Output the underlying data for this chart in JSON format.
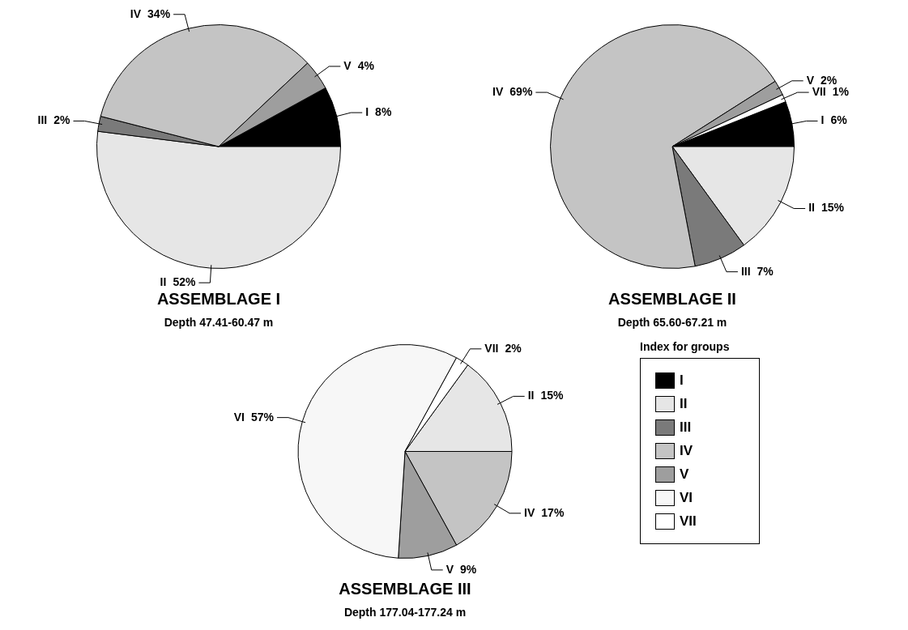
{
  "chart_data": [
    {
      "type": "pie",
      "title": "ASSEMBLAGE I",
      "subtitle": "Depth 47.41-60.47 m",
      "categories": [
        "I",
        "II",
        "III",
        "IV",
        "V"
      ],
      "values": [
        8,
        52,
        2,
        34,
        4
      ],
      "value_labels": [
        "8%",
        "52%",
        "2%",
        "34%",
        "4%"
      ],
      "colors": [
        "#000000",
        "#e6e6e6",
        "#7a7a7a",
        "#c4c4c4",
        "#9e9e9e"
      ]
    },
    {
      "type": "pie",
      "title": "ASSEMBLAGE II",
      "subtitle": "Depth 65.60-67.21 m",
      "categories": [
        "I",
        "II",
        "III",
        "IV",
        "V",
        "VII"
      ],
      "values": [
        6,
        15,
        7,
        69,
        2,
        1
      ],
      "value_labels": [
        "6%",
        "15%",
        "7%",
        "69%",
        "2%",
        "1%"
      ],
      "colors": [
        "#000000",
        "#e6e6e6",
        "#7a7a7a",
        "#c4c4c4",
        "#9e9e9e",
        "#ffffff"
      ]
    },
    {
      "type": "pie",
      "title": "ASSEMBLAGE III",
      "subtitle": "Depth 177.04-177.24 m",
      "categories": [
        "II",
        "IV",
        "V",
        "VI",
        "VII"
      ],
      "values": [
        15,
        17,
        9,
        57,
        2
      ],
      "value_labels": [
        "15%",
        "17%",
        "9%",
        "57%",
        "2%"
      ],
      "colors": [
        "#e6e6e6",
        "#c4c4c4",
        "#9e9e9e",
        "#f7f7f7",
        "#ffffff"
      ]
    },
    {
      "type": "other",
      "legend_title": "Index for groups",
      "categories": [
        "I",
        "II",
        "III",
        "IV",
        "V",
        "VI",
        "VII"
      ],
      "colors": [
        "#000000",
        "#e6e6e6",
        "#7a7a7a",
        "#c4c4c4",
        "#9e9e9e",
        "#f7f7f7",
        "#ffffff"
      ]
    }
  ]
}
